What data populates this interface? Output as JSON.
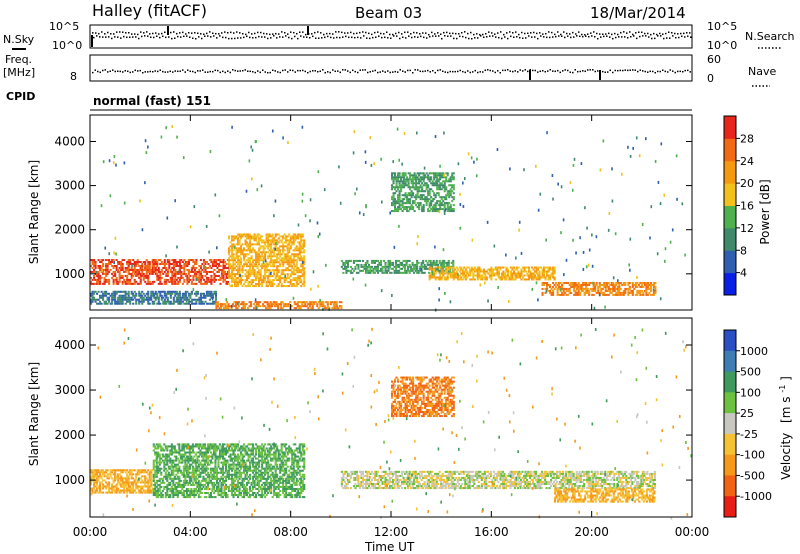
{
  "header": {
    "station": "Halley (fitACF)",
    "beam": "Beam 03",
    "date": "18/Mar/2014"
  },
  "top_panels": {
    "nsky_label": "N.Sky",
    "nsky_ticks": [
      "10^5",
      "10^0"
    ],
    "nsearch_label": "N.Search",
    "nsearch_ticks": [
      "10^5",
      "10^0"
    ],
    "freq_label": "Freq.",
    "freq_unit": "[MHz]",
    "freq_ticks": [
      "8"
    ],
    "nave_label": "Nave",
    "nave_ticks": [
      "60",
      "0"
    ],
    "cpid_label": "CPID",
    "cpid_value": "normal (fast) 151"
  },
  "x_axis": {
    "label": "Time UT",
    "ticks": [
      "00:00",
      "04:00",
      "08:00",
      "12:00",
      "16:00",
      "20:00",
      "00:00"
    ]
  },
  "y_axis_ticks": [
    "1000",
    "2000",
    "3000",
    "4000"
  ],
  "power_colorbar": {
    "label": "Power [dB]",
    "ticks": [
      "4",
      "8",
      "12",
      "16",
      "20",
      "24",
      "28"
    ],
    "colors": [
      "#0a1fe6",
      "#2e5fb0",
      "#3e8a6a",
      "#4fb04e",
      "#f2c21a",
      "#f59a10",
      "#f26b12",
      "#e8261c"
    ]
  },
  "velocity_colorbar": {
    "label": "Velocity",
    "unit": "[m s",
    "unit_exp": "-1",
    "unit_close": "]",
    "ticks": [
      "1000",
      "500",
      "100",
      "25",
      "-25",
      "-100",
      "-500",
      "-1000"
    ],
    "colors": [
      "#2a4fc4",
      "#3d7fb5",
      "#3f9a5d",
      "#6cc23e",
      "#c8c8c0",
      "#f5c234",
      "#f59a18",
      "#f26414",
      "#e81e16"
    ]
  },
  "chart_data": [
    {
      "type": "heatmap",
      "title": "",
      "ylabel": "Slant Range [km]",
      "xlabel": "",
      "xlim": [
        0,
        24
      ],
      "ylim": [
        180,
        4600
      ],
      "value_label": "Power [dB]",
      "regions": [
        {
          "t0": 0.0,
          "t1": 5.5,
          "r0": 750,
          "r1": 1300,
          "value": 28
        },
        {
          "t0": 5.5,
          "t1": 8.5,
          "r0": 700,
          "r1": 1900,
          "value": 20
        },
        {
          "t0": 0.0,
          "t1": 5.0,
          "r0": 300,
          "r1": 600,
          "value": 8
        },
        {
          "t0": 5.0,
          "t1": 10.0,
          "r0": 200,
          "r1": 350,
          "value": 24
        },
        {
          "t0": 10.0,
          "t1": 14.5,
          "r0": 1000,
          "r1": 1300,
          "value": 12
        },
        {
          "t0": 13.5,
          "t1": 18.5,
          "r0": 850,
          "r1": 1150,
          "value": 20
        },
        {
          "t0": 18.0,
          "t1": 22.5,
          "r0": 500,
          "r1": 800,
          "value": 24
        },
        {
          "t0": 12.0,
          "t1": 14.5,
          "r0": 2400,
          "r1": 3300,
          "value": 12
        }
      ]
    },
    {
      "type": "heatmap",
      "title": "",
      "ylabel": "Slant Range [km]",
      "xlabel": "Time UT",
      "xlim": [
        0,
        24
      ],
      "ylim": [
        180,
        4600
      ],
      "value_label": "Velocity [m s-1]",
      "regions": [
        {
          "t0": 0.0,
          "t1": 2.5,
          "r0": 700,
          "r1": 1200,
          "value": -100
        },
        {
          "t0": 2.5,
          "t1": 8.5,
          "r0": 600,
          "r1": 1800,
          "value": 100
        },
        {
          "t0": 10.0,
          "t1": 22.5,
          "r0": 800,
          "r1": 1200,
          "value": 0
        },
        {
          "t0": 18.5,
          "t1": 22.5,
          "r0": 500,
          "r1": 800,
          "value": -100
        },
        {
          "t0": 12.0,
          "t1": 14.5,
          "r0": 2400,
          "r1": 3300,
          "value": -500
        }
      ]
    }
  ]
}
